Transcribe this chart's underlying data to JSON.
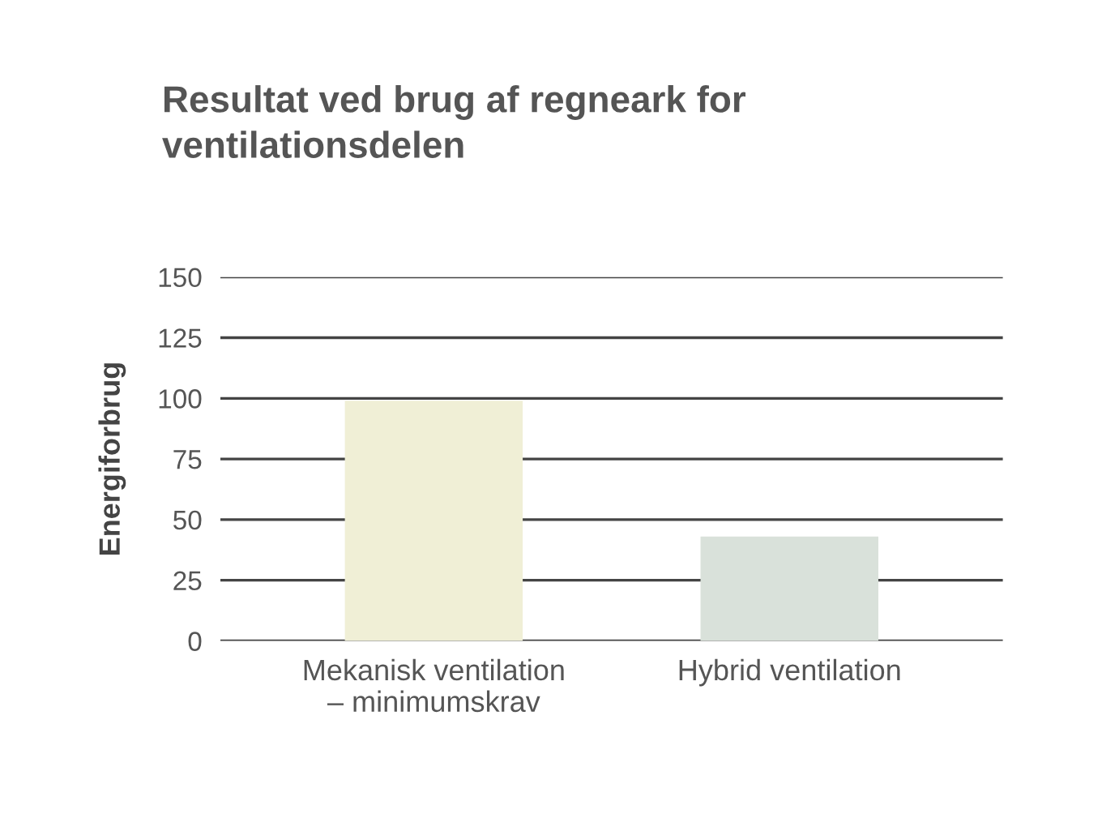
{
  "chart_data": {
    "type": "bar",
    "title": "Resultat ved brug af regneark for\nventilationsdelen",
    "ylabel": "Energiforbrug",
    "categories": [
      "Mekanisk ventilation\n– minimumskrav",
      "Hybrid ventilation"
    ],
    "values": [
      99,
      43
    ],
    "colors": [
      "#f0efd6",
      "#d9e1da"
    ],
    "ylim": [
      0,
      150
    ],
    "yticks": [
      0,
      25,
      50,
      75,
      100,
      125,
      150
    ],
    "grid": "y"
  }
}
